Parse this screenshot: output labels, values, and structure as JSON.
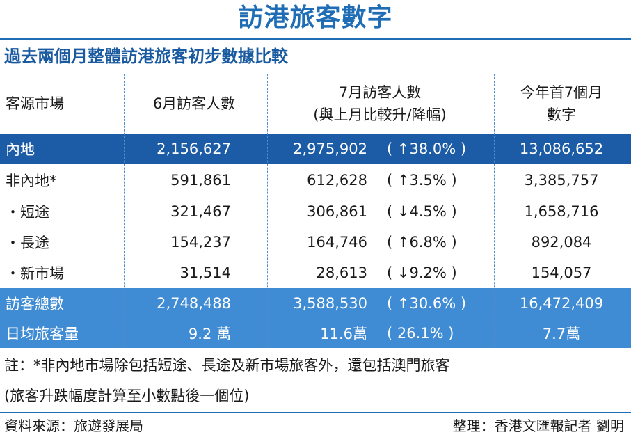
{
  "title": "訪港旅客數字",
  "subtitle": "過去兩個月整體訪港旅客初步數據比較",
  "header": {
    "col0": "客源市場",
    "col1": "6月訪客人數",
    "col2_line1": "7月訪客人數",
    "col2_line2": "(與上月比較升/降幅)",
    "col3_line1": "今年首7個月",
    "col3_line2": "數字"
  },
  "rows": [
    {
      "market": "內地",
      "june": "2,156,627",
      "july": "2,975,902",
      "change": "( ↑38.0% )",
      "ytd": "13,086,652"
    },
    {
      "market": "非內地*",
      "june": "591,861",
      "july": "612,628",
      "change": "( ↑3.5% )",
      "ytd": "3,385,757"
    },
    {
      "market": "・短途",
      "june": "321,467",
      "july": "306,861",
      "change": "( ↓4.5% )",
      "ytd": "1,658,716"
    },
    {
      "market": "・長途",
      "june": "154,237",
      "july": "164,746",
      "change": "( ↑6.8% )",
      "ytd": "892,084"
    },
    {
      "market": "・新市場",
      "june": "31,514",
      "july": "28,613",
      "change": "( ↓9.2% )",
      "ytd": "154,057"
    },
    {
      "market": "訪客總數",
      "june": "2,748,488",
      "july": "3,588,530",
      "change": "( ↑30.6% )",
      "ytd": "16,472,409"
    },
    {
      "market": "日均旅客量",
      "june": "9.2 萬",
      "july": "11.6萬",
      "change": "( 26.1% )",
      "ytd": "7.7萬"
    }
  ],
  "notes": {
    "line1": "註：*非內地市場除包括短途、長途及新市場旅客外，還包括澳門旅客",
    "line2": "(旅客升跌幅度計算至小數點後一個位)"
  },
  "footer": {
    "source": "資料來源：旅遊發展局",
    "credit": "整理：香港文匯報記者 劉明"
  },
  "colors": {
    "accent": "#1f6db5",
    "dark_row": "#1c5ca6",
    "light_row": "#3f8cd4"
  }
}
